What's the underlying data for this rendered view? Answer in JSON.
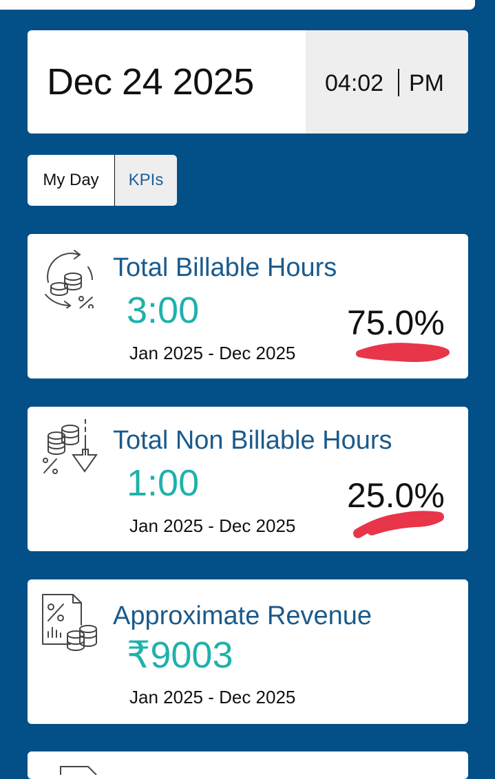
{
  "header": {
    "date": "Dec 24 2025",
    "time": "04:02",
    "ampm": "PM"
  },
  "tabs": [
    {
      "label": "My Day",
      "active": false
    },
    {
      "label": "KPIs",
      "active": true
    }
  ],
  "kpis": [
    {
      "title": "Total Billable Hours",
      "value": "3:00",
      "range": "Jan 2025 - Dec 2025",
      "percent": "75.0%",
      "icon": "coins-cycle-percent-icon"
    },
    {
      "title": "Total Non Billable Hours",
      "value": "1:00",
      "range": "Jan 2025 - Dec 2025",
      "percent": "25.0%",
      "icon": "coins-down-arrow-percent-icon"
    },
    {
      "title": "Approximate Revenue",
      "value": "₹9003",
      "range": "Jan 2025 - Dec 2025",
      "icon": "revenue-document-coins-icon"
    }
  ],
  "colors": {
    "background": "#034f87",
    "title": "#1a5a8c",
    "value": "#1fb1ab",
    "annotation": "#e8354a"
  }
}
